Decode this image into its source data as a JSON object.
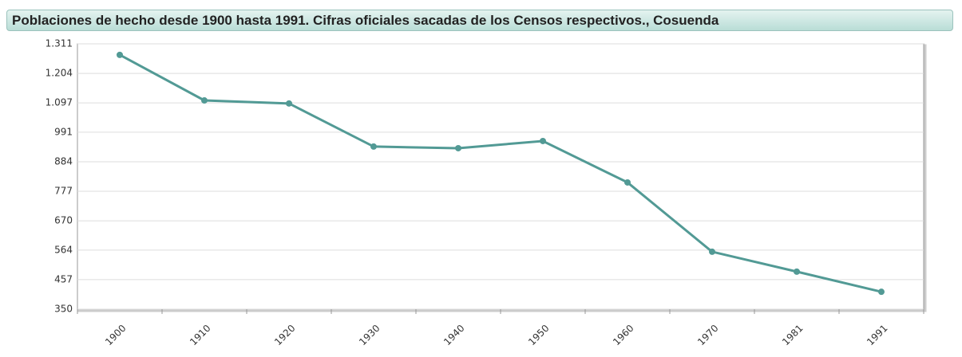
{
  "chart_data": {
    "type": "line",
    "title": "Poblaciones de hecho desde 1900 hasta 1991. Cifras oficiales sacadas de los Censos respectivos., Cosuenda",
    "categories": [
      "1900",
      "1910",
      "1920",
      "1930",
      "1940",
      "1950",
      "1960",
      "1970",
      "1981",
      "1991"
    ],
    "series": [
      {
        "name": "Cosuenda",
        "color": "#529a95",
        "values": [
          1271,
          1106,
          1095,
          939,
          933,
          959,
          809,
          558,
          486,
          413
        ]
      }
    ],
    "ylim": [
      350,
      1311
    ],
    "yticks": [
      350,
      457,
      564,
      670,
      777,
      884,
      991,
      {
        "value": 1097,
        "label": "1.097"
      },
      {
        "value": 1204,
        "label": "1.204"
      },
      {
        "value": 1311,
        "label": "1.311"
      }
    ],
    "grid": true
  }
}
